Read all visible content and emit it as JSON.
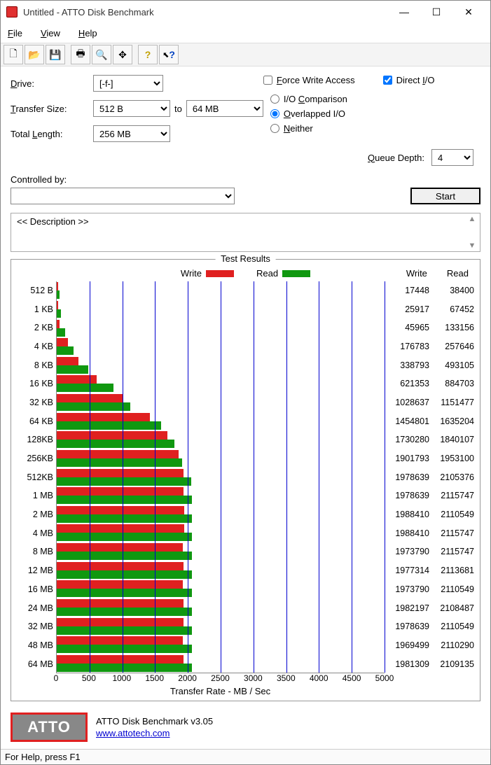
{
  "window": {
    "title": "Untitled - ATTO Disk Benchmark"
  },
  "menu": {
    "file": "File",
    "view": "View",
    "help": "Help"
  },
  "toolbar_icons": [
    "new",
    "open",
    "save",
    "print",
    "preview",
    "move",
    "help",
    "whatsthis"
  ],
  "config": {
    "drive_label": "Drive:",
    "drive_value": "[-f-]",
    "transfer_label": "Transfer Size:",
    "transfer_from": "512 B",
    "transfer_to_label": "to",
    "transfer_to": "64 MB",
    "total_label": "Total Length:",
    "total_value": "256 MB",
    "force_write_label": "Force Write Access",
    "force_write_checked": false,
    "direct_io_label": "Direct I/O",
    "direct_io_checked": true,
    "io_mode": {
      "comparison": "I/O Comparison",
      "overlapped": "Overlapped I/O",
      "neither": "Neither",
      "selected": "overlapped"
    },
    "queue_depth_label": "Queue Depth:",
    "queue_depth_value": "4",
    "controlled_label": "Controlled by:",
    "controlled_value": "",
    "start_label": "Start"
  },
  "description": {
    "placeholder": "<< Description >>"
  },
  "results": {
    "frame_title": "Test Results",
    "legend_write": "Write",
    "legend_read": "Read",
    "col_write": "Write",
    "col_read": "Read",
    "write_color": "#e02020",
    "read_color": "#109810",
    "grid_color": "#0000d0",
    "x_label": "Transfer Rate - MB / Sec",
    "x_max": 5000,
    "x_ticks": [
      0,
      500,
      1000,
      1500,
      2000,
      2500,
      3000,
      3500,
      4000,
      4500,
      5000
    ],
    "rows": [
      {
        "label": "512 B",
        "write": 17448,
        "read": 38400
      },
      {
        "label": "1 KB",
        "write": 25917,
        "read": 67452
      },
      {
        "label": "2 KB",
        "write": 45965,
        "read": 133156
      },
      {
        "label": "4 KB",
        "write": 176783,
        "read": 257646
      },
      {
        "label": "8 KB",
        "write": 338793,
        "read": 493105
      },
      {
        "label": "16 KB",
        "write": 621353,
        "read": 884703
      },
      {
        "label": "32 KB",
        "write": 1028637,
        "read": 1151477
      },
      {
        "label": "64 KB",
        "write": 1454801,
        "read": 1635204
      },
      {
        "label": "128KB",
        "write": 1730280,
        "read": 1840107
      },
      {
        "label": "256KB",
        "write": 1901793,
        "read": 1953100
      },
      {
        "label": "512KB",
        "write": 1978639,
        "read": 2105376
      },
      {
        "label": "1 MB",
        "write": 1978639,
        "read": 2115747
      },
      {
        "label": "2 MB",
        "write": 1988410,
        "read": 2110549
      },
      {
        "label": "4 MB",
        "write": 1988410,
        "read": 2115747
      },
      {
        "label": "8 MB",
        "write": 1973790,
        "read": 2115747
      },
      {
        "label": "12 MB",
        "write": 1977314,
        "read": 2113681
      },
      {
        "label": "16 MB",
        "write": 1973790,
        "read": 2110549
      },
      {
        "label": "24 MB",
        "write": 1982197,
        "read": 2108487
      },
      {
        "label": "32 MB",
        "write": 1978639,
        "read": 2110549
      },
      {
        "label": "48 MB",
        "write": 1969499,
        "read": 2110290
      },
      {
        "label": "64 MB",
        "write": 1981309,
        "read": 2109135
      }
    ]
  },
  "branding": {
    "logo_text": "ATTO",
    "product": "ATTO Disk Benchmark v3.05",
    "url": "www.attotech.com"
  },
  "status": {
    "text": "For Help, press F1"
  }
}
